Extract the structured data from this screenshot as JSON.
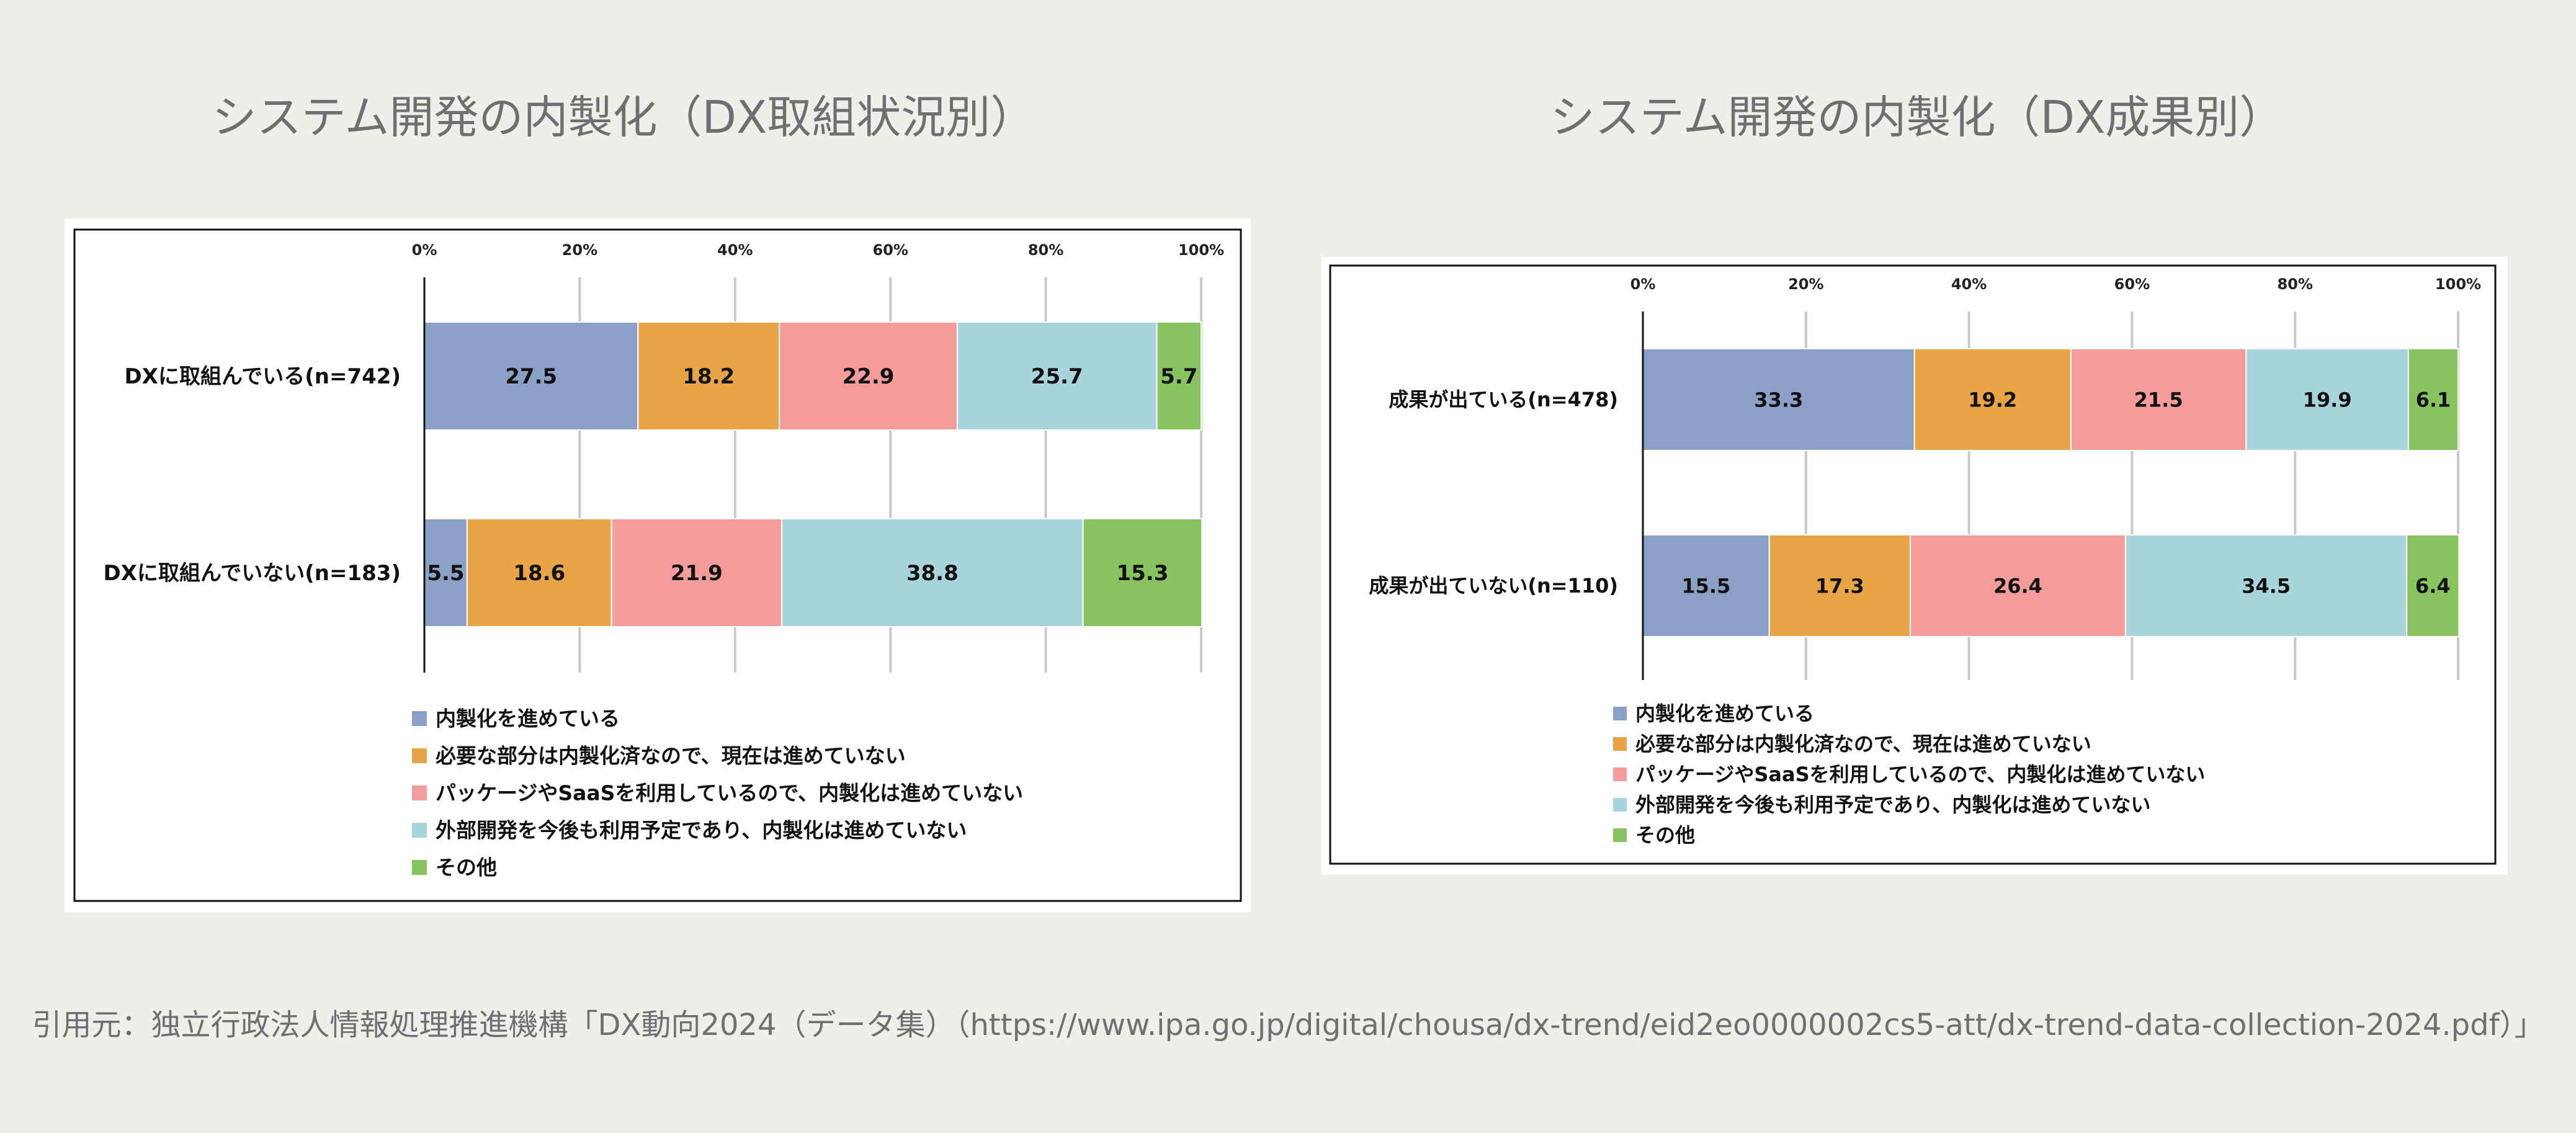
{
  "panels": [
    {
      "title": "システム開発の内製化（DX取組状況別）"
    },
    {
      "title": "システム開発の内製化（DX成果別）"
    }
  ],
  "colors": [
    "#8aa0c6",
    "#e9a448",
    "#f49c9b",
    "#a8d4db",
    "#87c35e"
  ],
  "chart_data": [
    {
      "type": "bar",
      "orientation": "horizontal",
      "stacked": true,
      "percent_stacked": true,
      "title": "システム開発の内製化（DX取組状況別）",
      "categories": [
        "DXに取組んでいる(n=742)",
        "DXに取組んでいない(n=183)"
      ],
      "xlim": [
        0,
        100
      ],
      "xticks": [
        "0%",
        "20%",
        "40%",
        "60%",
        "80%",
        "100%"
      ],
      "grid": true,
      "legend_position": "bottom",
      "series": [
        {
          "name": "内製化を進めている",
          "values": [
            27.5,
            5.5
          ]
        },
        {
          "name": "必要な部分は内製化済なので、現在は進めていない",
          "values": [
            18.2,
            18.6
          ]
        },
        {
          "name": "パッケージやSaaSを利用しているので、内製化は進めていない",
          "values": [
            22.9,
            21.9
          ]
        },
        {
          "name": "外部開発を今後も利用予定であり、内製化は進めていない",
          "values": [
            25.7,
            38.8
          ]
        },
        {
          "name": "その他",
          "values": [
            5.7,
            15.3
          ]
        }
      ]
    },
    {
      "type": "bar",
      "orientation": "horizontal",
      "stacked": true,
      "percent_stacked": true,
      "title": "システム開発の内製化（DX成果別）",
      "categories": [
        "成果が出ている(n=478)",
        "成果が出ていない(n=110)"
      ],
      "xlim": [
        0,
        100
      ],
      "xticks": [
        "0%",
        "20%",
        "40%",
        "60%",
        "80%",
        "100%"
      ],
      "grid": true,
      "legend_position": "bottom",
      "series": [
        {
          "name": "内製化を進めている",
          "values": [
            33.3,
            15.5
          ]
        },
        {
          "name": "必要な部分は内製化済なので、現在は進めていない",
          "values": [
            19.2,
            17.3
          ]
        },
        {
          "name": "パッケージやSaaSを利用しているので、内製化は進めていない",
          "values": [
            21.5,
            26.4
          ]
        },
        {
          "name": "外部開発を今後も利用予定であり、内製化は進めていない",
          "values": [
            19.9,
            34.5
          ]
        },
        {
          "name": "その他",
          "values": [
            6.1,
            6.4
          ]
        }
      ]
    }
  ],
  "source": "引用元：独立行政法人情報処理推進機構「DX動向2024（データ集）（https://www.ipa.go.jp/digital/chousa/dx-trend/eid2eo0000002cs5-att/dx-trend-data-collection-2024.pdf）」"
}
